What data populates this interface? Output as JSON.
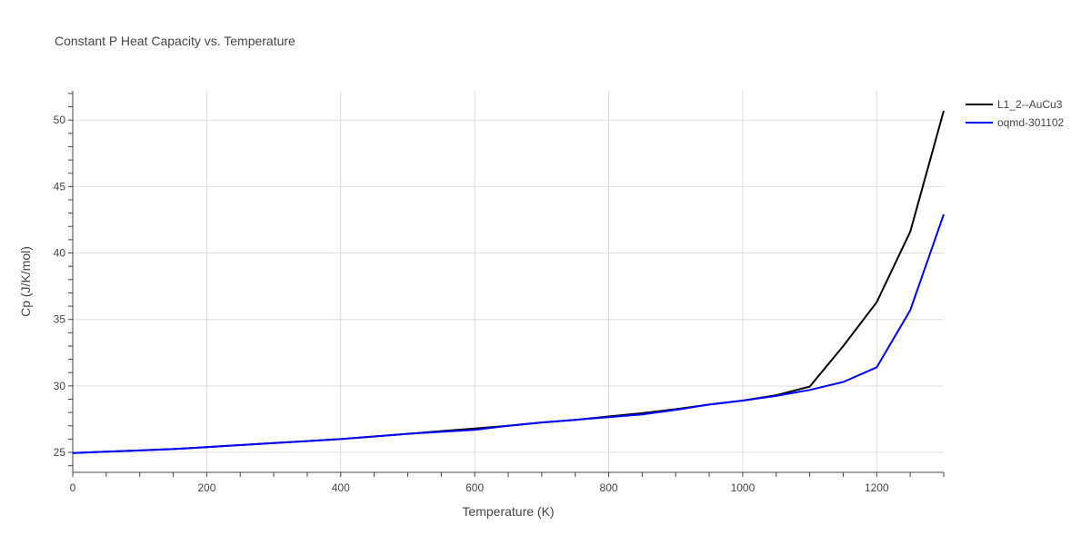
{
  "chart_data": {
    "type": "line",
    "title": "Constant P Heat Capacity vs. Temperature",
    "xlabel": "Temperature (K)",
    "ylabel": "Cp (J/K/mol)",
    "xlim": [
      0,
      1300
    ],
    "ylim": [
      23.5,
      52.2
    ],
    "x_ticks": [
      0,
      200,
      400,
      600,
      800,
      1000,
      1200
    ],
    "y_ticks": [
      25,
      30,
      35,
      40,
      45,
      50
    ],
    "grid": true,
    "legend_position": "top-right",
    "series": [
      {
        "name": "L1_2--AuCu3",
        "color": "#000000",
        "x": [
          0,
          50,
          100,
          150,
          200,
          250,
          300,
          350,
          400,
          450,
          500,
          550,
          600,
          650,
          700,
          750,
          800,
          850,
          900,
          950,
          1000,
          1050,
          1100,
          1150,
          1200,
          1250,
          1300
        ],
        "y": [
          24.95,
          25.05,
          25.15,
          25.25,
          25.4,
          25.55,
          25.7,
          25.85,
          26.0,
          26.2,
          26.4,
          26.6,
          26.8,
          27.0,
          27.25,
          27.45,
          27.7,
          27.95,
          28.25,
          28.6,
          28.9,
          29.3,
          29.95,
          33.0,
          36.3,
          41.6,
          50.7
        ]
      },
      {
        "name": "oqmd-301102",
        "color": "#0000ff",
        "x": [
          0,
          50,
          100,
          150,
          200,
          250,
          300,
          350,
          400,
          450,
          500,
          550,
          600,
          650,
          700,
          750,
          800,
          850,
          900,
          950,
          1000,
          1050,
          1100,
          1150,
          1200,
          1250,
          1300
        ],
        "y": [
          24.95,
          25.05,
          25.15,
          25.25,
          25.4,
          25.55,
          25.7,
          25.85,
          26.0,
          26.2,
          26.4,
          26.55,
          26.7,
          27.0,
          27.25,
          27.45,
          27.65,
          27.85,
          28.2,
          28.6,
          28.9,
          29.25,
          29.7,
          30.3,
          31.4,
          35.7,
          42.9
        ]
      }
    ]
  }
}
